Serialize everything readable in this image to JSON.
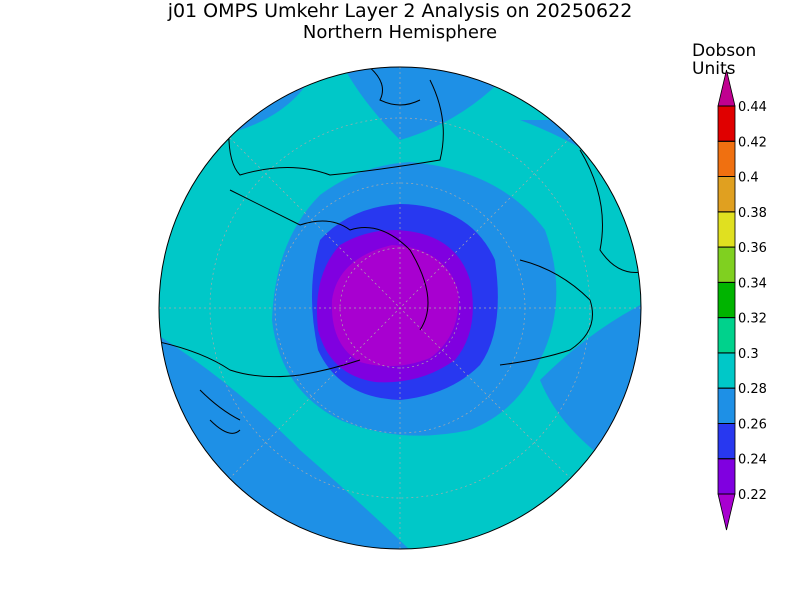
{
  "title": "j01 OMPS Umkehr Layer 2 Analysis on 20250622",
  "subtitle": "Northern Hemisphere",
  "colorbar": {
    "label": [
      "Dobson",
      "Units"
    ],
    "ticks": [
      0.22,
      0.24,
      0.26,
      0.28,
      0.3,
      0.32,
      0.34,
      0.36,
      0.38,
      0.4,
      0.42,
      0.44
    ],
    "colors": [
      "#a800d0",
      "#8000e0",
      "#2838f0",
      "#1e90e6",
      "#00c8c8",
      "#00d28c",
      "#00b400",
      "#80d020",
      "#e0e020",
      "#e0a020",
      "#f07010",
      "#e00000",
      "#c00090"
    ]
  }
}
